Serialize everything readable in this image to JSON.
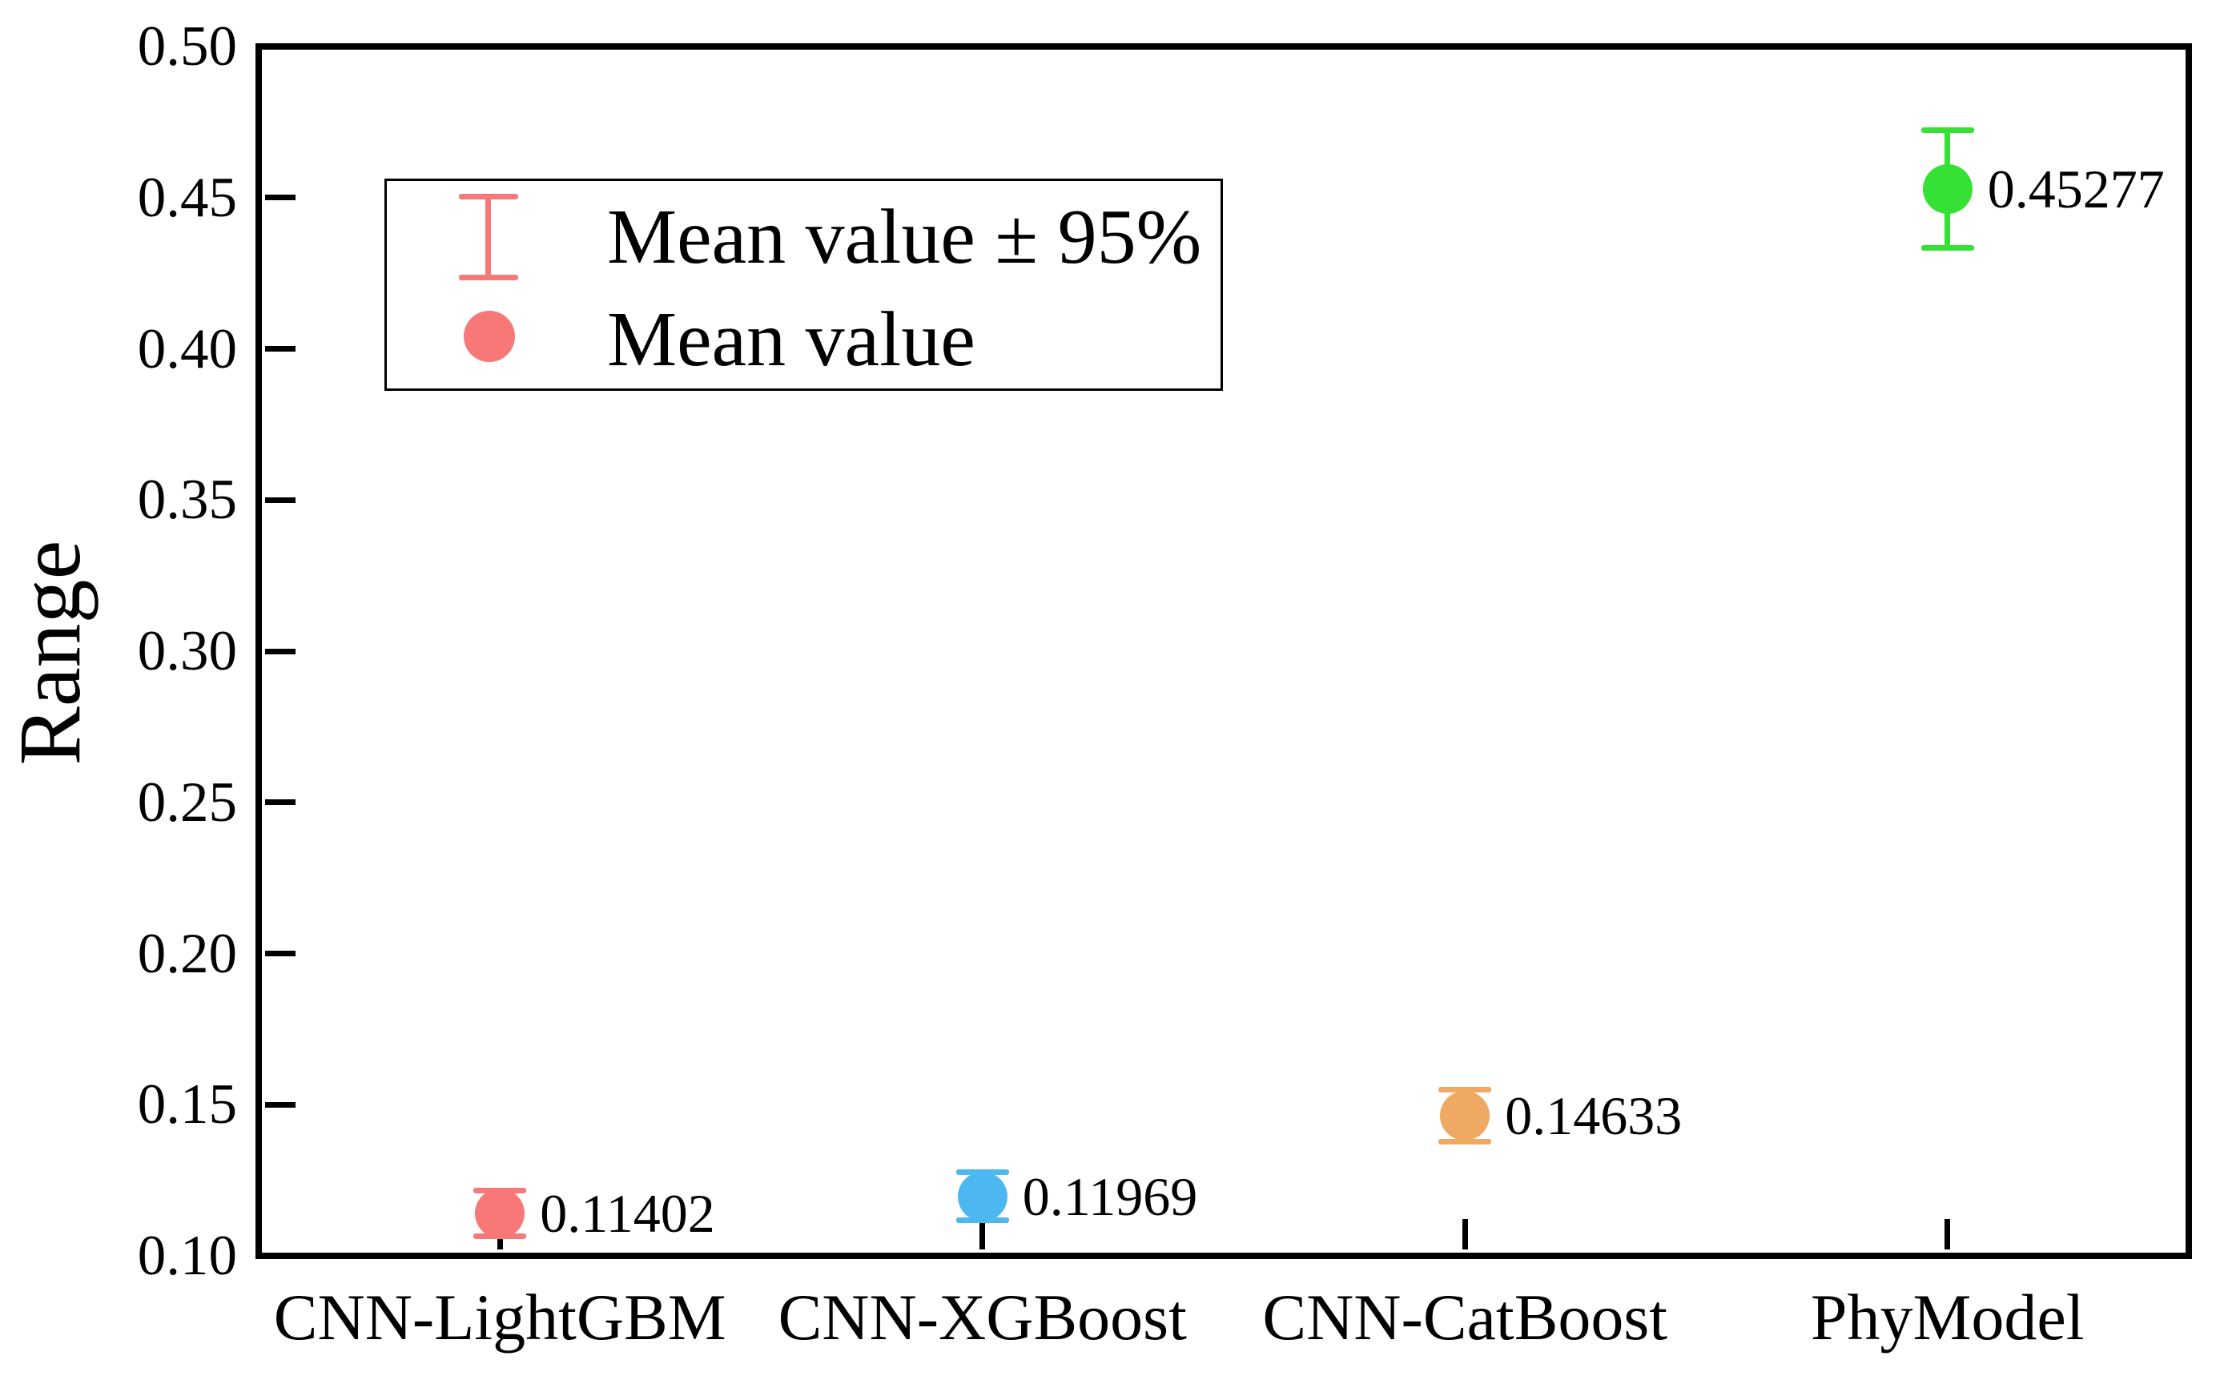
{
  "figure": {
    "background_color": "#ffffff",
    "frame_color": "#000000"
  },
  "chart_data": {
    "type": "scatter",
    "title": "",
    "xlabel": "",
    "ylabel": "Range",
    "categories": [
      "CNN-LightGBM",
      "CNN-XGBoost",
      "CNN-CatBoost",
      "PhyModel"
    ],
    "series": [
      {
        "name": "Mean value",
        "values": [
          0.11402,
          0.11969,
          0.14633,
          0.45277
        ],
        "errors_95": [
          0.0076,
          0.008,
          0.0086,
          0.0195
        ],
        "point_colors": [
          "#F87878",
          "#4DB8F0",
          "#F0A962",
          "#35E135"
        ],
        "annotations": [
          "0.11402",
          "0.11969",
          "0.14633",
          "0.45277"
        ]
      }
    ],
    "ylim": [
      0.1,
      0.5
    ],
    "ytick_step": 0.05,
    "ytick_labels": [
      "0.50",
      "0.45",
      "0.40",
      "0.35",
      "0.30",
      "0.25",
      "0.20",
      "0.15",
      "0.10"
    ],
    "grid": false,
    "legend": {
      "position": "upper-left",
      "symbol_color": "#F87878",
      "entries": [
        {
          "symbol": "errorbar-icon",
          "label": "Mean value ± 95%"
        },
        {
          "symbol": "circle-icon",
          "label": "Mean value"
        }
      ]
    }
  }
}
